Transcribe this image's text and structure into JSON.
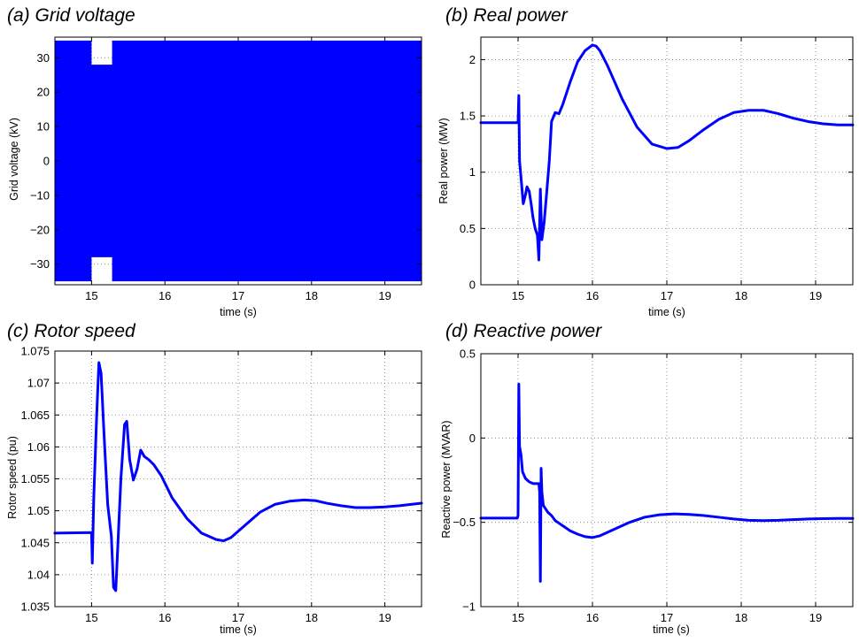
{
  "chart_data": [
    {
      "id": "a",
      "type": "area",
      "title": "(a) Grid voltage",
      "xlabel": "time (s)",
      "ylabel": "Grid voltage (kV)",
      "xlim": [
        14.5,
        19.5
      ],
      "ylim": [
        -36,
        36
      ],
      "xticks": [
        15,
        16,
        17,
        18,
        19
      ],
      "yticks": [
        -30,
        -20,
        -10,
        0,
        10,
        20,
        30
      ],
      "ytick_labels": [
        "−30",
        "−20",
        "−10",
        "0",
        "10",
        "20",
        "30"
      ],
      "grid": true,
      "series": [
        {
          "x": [
            14.5,
            15.0,
            15.0,
            15.28,
            15.28,
            19.5
          ],
          "upper": [
            35,
            35,
            28,
            28,
            35,
            35
          ],
          "lower": [
            -35,
            -35,
            -28,
            -28,
            -35,
            -35
          ]
        }
      ]
    },
    {
      "id": "b",
      "type": "line",
      "title": "(b) Real power",
      "xlabel": "time (s)",
      "ylabel": "Real power (MW)",
      "xlim": [
        14.5,
        19.5
      ],
      "ylim": [
        0,
        2.2
      ],
      "xticks": [
        15,
        16,
        17,
        18,
        19
      ],
      "yticks": [
        0,
        0.5,
        1,
        1.5,
        2
      ],
      "ytick_labels": [
        "0",
        "0.5",
        "1",
        "1.5",
        "2"
      ],
      "grid": true,
      "series": [
        {
          "x": [
            14.5,
            15.0,
            15.01,
            15.015,
            15.02,
            15.04,
            15.07,
            15.1,
            15.12,
            15.15,
            15.18,
            15.2,
            15.23,
            15.26,
            15.28,
            15.3,
            15.32,
            15.35,
            15.38,
            15.42,
            15.45,
            15.5,
            15.55,
            15.6,
            15.7,
            15.8,
            15.9,
            16.0,
            16.05,
            16.1,
            16.2,
            16.3,
            16.4,
            16.6,
            16.8,
            17.0,
            17.15,
            17.3,
            17.5,
            17.7,
            17.9,
            18.1,
            18.3,
            18.5,
            18.7,
            18.9,
            19.1,
            19.3,
            19.5
          ],
          "values": [
            1.44,
            1.44,
            1.68,
            1.4,
            1.1,
            0.95,
            0.72,
            0.8,
            0.87,
            0.83,
            0.7,
            0.6,
            0.5,
            0.44,
            0.22,
            0.85,
            0.4,
            0.55,
            0.78,
            1.1,
            1.45,
            1.53,
            1.52,
            1.6,
            1.8,
            1.98,
            2.08,
            2.13,
            2.12,
            2.08,
            1.95,
            1.8,
            1.65,
            1.4,
            1.25,
            1.21,
            1.22,
            1.28,
            1.38,
            1.47,
            1.53,
            1.55,
            1.55,
            1.52,
            1.48,
            1.45,
            1.43,
            1.42,
            1.42
          ]
        }
      ]
    },
    {
      "id": "c",
      "type": "line",
      "title": "(c) Rotor speed",
      "xlabel": "time (s)",
      "ylabel": "Rotor speed (pu)",
      "xlim": [
        14.5,
        19.5
      ],
      "ylim": [
        1.035,
        1.075
      ],
      "xticks": [
        15,
        16,
        17,
        18,
        19
      ],
      "yticks": [
        1.035,
        1.04,
        1.045,
        1.05,
        1.055,
        1.06,
        1.065,
        1.07,
        1.075
      ],
      "ytick_labels": [
        "1.035",
        "1.04",
        "1.045",
        "1.05",
        "1.055",
        "1.06",
        "1.065",
        "1.07",
        "1.075"
      ],
      "grid": true,
      "series": [
        {
          "x": [
            14.5,
            15.0,
            15.01,
            15.03,
            15.07,
            15.1,
            15.13,
            15.17,
            15.22,
            15.27,
            15.3,
            15.33,
            15.36,
            15.4,
            15.45,
            15.48,
            15.52,
            15.57,
            15.62,
            15.67,
            15.72,
            15.78,
            15.85,
            15.95,
            16.1,
            16.3,
            16.5,
            16.7,
            16.8,
            16.9,
            17.1,
            17.3,
            17.5,
            17.7,
            17.9,
            18.05,
            18.2,
            18.4,
            18.6,
            18.8,
            19.0,
            19.2,
            19.5
          ],
          "values": [
            1.0465,
            1.0466,
            1.0418,
            1.052,
            1.065,
            1.0732,
            1.0715,
            1.062,
            1.051,
            1.046,
            1.038,
            1.0375,
            1.045,
            1.055,
            1.0635,
            1.064,
            1.058,
            1.0548,
            1.0565,
            1.0595,
            1.0585,
            1.058,
            1.0572,
            1.0555,
            1.052,
            1.0488,
            1.0465,
            1.0455,
            1.0453,
            1.0458,
            1.0478,
            1.0498,
            1.051,
            1.0515,
            1.0517,
            1.0516,
            1.0512,
            1.0508,
            1.0505,
            1.0505,
            1.0506,
            1.0508,
            1.0512
          ]
        }
      ]
    },
    {
      "id": "d",
      "type": "line",
      "title": "(d) Reactive power",
      "xlabel": "time (s)",
      "ylabel": "Reactive power (MVAR)",
      "xlim": [
        14.5,
        19.5
      ],
      "ylim": [
        -1,
        0.5
      ],
      "xticks": [
        15,
        16,
        17,
        18,
        19
      ],
      "yticks": [
        -1,
        -0.5,
        0,
        0.5
      ],
      "ytick_labels": [
        "−1",
        "−0.5",
        "0",
        "0.5"
      ],
      "grid": true,
      "series": [
        {
          "x": [
            14.5,
            14.99,
            15.0,
            15.01,
            15.02,
            15.04,
            15.06,
            15.08,
            15.1,
            15.15,
            15.2,
            15.28,
            15.29,
            15.3,
            15.31,
            15.32,
            15.34,
            15.37,
            15.4,
            15.45,
            15.5,
            15.6,
            15.7,
            15.8,
            15.9,
            16.0,
            16.1,
            16.3,
            16.5,
            16.7,
            16.9,
            17.1,
            17.3,
            17.5,
            17.7,
            17.9,
            18.1,
            18.3,
            18.5,
            18.7,
            18.9,
            19.1,
            19.3,
            19.5
          ],
          "values": [
            -0.475,
            -0.475,
            -0.46,
            0.32,
            -0.05,
            -0.1,
            -0.2,
            -0.22,
            -0.24,
            -0.26,
            -0.27,
            -0.27,
            -0.32,
            -0.85,
            -0.18,
            -0.32,
            -0.4,
            -0.42,
            -0.44,
            -0.46,
            -0.49,
            -0.52,
            -0.55,
            -0.57,
            -0.585,
            -0.59,
            -0.58,
            -0.54,
            -0.5,
            -0.47,
            -0.455,
            -0.45,
            -0.453,
            -0.46,
            -0.47,
            -0.48,
            -0.488,
            -0.49,
            -0.488,
            -0.484,
            -0.48,
            -0.478,
            -0.477,
            -0.477
          ]
        }
      ]
    }
  ]
}
